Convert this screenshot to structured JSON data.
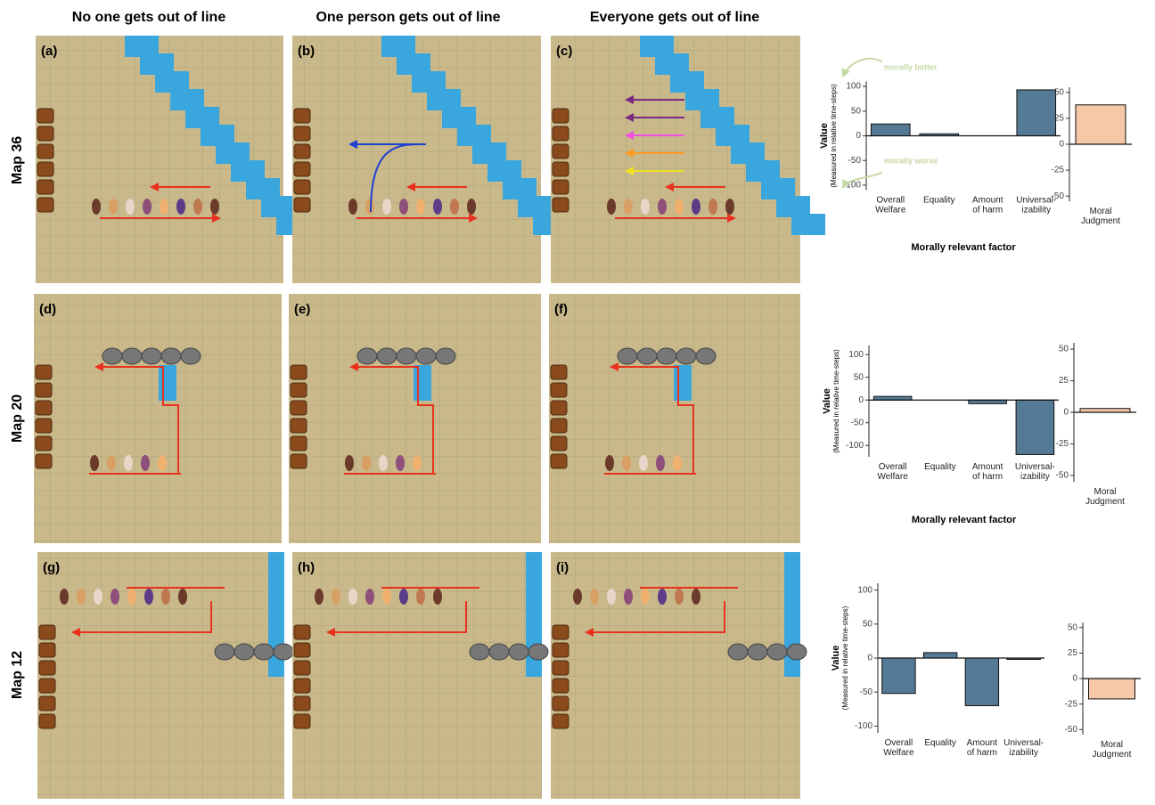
{
  "column_headers": [
    "No one gets out of line",
    "One person gets out of line",
    "Everyone gets out of line"
  ],
  "row_labels": [
    "Map 36",
    "Map 20",
    "Map 12"
  ],
  "panel_labels": [
    "(a)",
    "(b)",
    "(c)",
    "(d)",
    "(e)",
    "(f)",
    "(g)",
    "(h)",
    "(i)"
  ],
  "chart_data": [
    {
      "type": "bar",
      "ylabel": "Value",
      "ysublabel": "(Measured in relative time-steps)",
      "xlabel": "Morally relevant factor",
      "categories": [
        "Overall\nWelfare",
        "Equality",
        "Amount\nof harm",
        "Universal-\nizability"
      ],
      "values": [
        24,
        4,
        0,
        93
      ],
      "color": "#557a95",
      "ylim": [
        -110,
        110
      ],
      "yticks": [
        100,
        50,
        0,
        -50,
        -100
      ],
      "annotations": [
        "morally better",
        "morally worse"
      ]
    },
    {
      "type": "bar",
      "categories": [
        "Moral\nJudgment"
      ],
      "values": [
        38
      ],
      "color": "#f6c8a8",
      "ylim": [
        -55,
        55
      ],
      "yticks": [
        50,
        25,
        0,
        -25,
        -50
      ]
    },
    {
      "type": "bar",
      "ylabel": "Value",
      "ysublabel": "(Measured in relative time-steps)",
      "xlabel": "Morally relevant factor",
      "categories": [
        "Overall\nWelfare",
        "Equality",
        "Amount\nof harm",
        "Universal-\nizability"
      ],
      "values": [
        8,
        0,
        -8,
        -120
      ],
      "color": "#557a95",
      "ylim": [
        -125,
        120
      ],
      "yticks": [
        100,
        50,
        0,
        -50,
        -100
      ]
    },
    {
      "type": "bar",
      "categories": [
        "Moral\nJudgment"
      ],
      "values": [
        3
      ],
      "color": "#f6c8a8",
      "ylim": [
        -55,
        55
      ],
      "yticks": [
        50,
        25,
        0,
        -25,
        -50
      ]
    },
    {
      "type": "bar",
      "ylabel": "Value",
      "ysublabel": "(Measured in relative time-steps)",
      "categories": [
        "Overall\nWelfare",
        "Equality",
        "Amount\nof harm",
        "Universal-\nizability"
      ],
      "values": [
        -52,
        8,
        -70,
        -2
      ],
      "color": "#557a95",
      "ylim": [
        -110,
        110
      ],
      "yticks": [
        100,
        50,
        0,
        -50,
        -100
      ]
    },
    {
      "type": "bar",
      "categories": [
        "Moral\nJudgment"
      ],
      "values": [
        -20
      ],
      "color": "#f6c8a8",
      "ylim": [
        -55,
        55
      ],
      "yticks": [
        50,
        25,
        0,
        -25,
        -50
      ]
    }
  ]
}
